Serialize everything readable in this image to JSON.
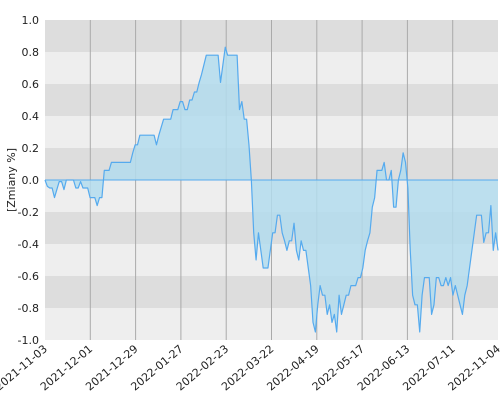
{
  "chart_data": {
    "type": "area",
    "title": "",
    "xlabel": "",
    "ylabel": "[Zmiany %]",
    "ylim": [
      -1.0,
      1.0
    ],
    "y_ticks": [
      "1.0",
      "0.8",
      "0.6",
      "0.4",
      "0.2",
      "0.0",
      "-0.2",
      "-0.4",
      "-0.6",
      "-0.8",
      "-1.0"
    ],
    "x_ticks": [
      "2021-11-03",
      "2021-12-01",
      "2021-12-29",
      "2022-01-27",
      "2022-02-23",
      "2022-03-22",
      "2022-04-19",
      "2022-05-17",
      "2022-06-13",
      "2022-07-11",
      "2022-11-04"
    ],
    "grid": true,
    "series": [
      {
        "values": [
          0.0,
          -0.04,
          -0.05,
          -0.05,
          -0.11,
          -0.06,
          -0.01,
          -0.01,
          -0.06,
          0.0,
          0.0,
          0.0,
          0.0,
          -0.05,
          -0.05,
          -0.01,
          -0.05,
          -0.05,
          -0.05,
          -0.11,
          -0.11,
          -0.11,
          -0.16,
          -0.11,
          -0.11,
          0.06,
          0.06,
          0.06,
          0.11,
          0.11,
          0.11,
          0.11,
          0.11,
          0.11,
          0.11,
          0.11,
          0.11,
          0.17,
          0.22,
          0.22,
          0.28,
          0.28,
          0.28,
          0.28,
          0.28,
          0.28,
          0.28,
          0.22,
          0.28,
          0.33,
          0.38,
          0.38,
          0.38,
          0.38,
          0.44,
          0.44,
          0.44,
          0.49,
          0.49,
          0.44,
          0.44,
          0.5,
          0.5,
          0.55,
          0.55,
          0.61,
          0.66,
          0.72,
          0.78,
          0.78,
          0.78,
          0.78,
          0.78,
          0.78,
          0.61,
          0.72,
          0.83,
          0.78,
          0.78,
          0.78,
          0.78,
          0.78,
          0.44,
          0.49,
          0.38,
          0.38,
          0.22,
          0.0,
          -0.33,
          -0.5,
          -0.33,
          -0.44,
          -0.55,
          -0.55,
          -0.55,
          -0.44,
          -0.33,
          -0.33,
          -0.22,
          -0.22,
          -0.33,
          -0.38,
          -0.44,
          -0.38,
          -0.38,
          -0.27,
          -0.44,
          -0.5,
          -0.38,
          -0.44,
          -0.44,
          -0.55,
          -0.66,
          -0.89,
          -0.95,
          -0.78,
          -0.66,
          -0.72,
          -0.72,
          -0.84,
          -0.78,
          -0.89,
          -0.84,
          -0.95,
          -0.72,
          -0.84,
          -0.78,
          -0.72,
          -0.72,
          -0.66,
          -0.66,
          -0.66,
          -0.61,
          -0.61,
          -0.55,
          -0.44,
          -0.38,
          -0.33,
          -0.17,
          -0.11,
          0.06,
          0.06,
          0.06,
          0.11,
          0.0,
          0.0,
          0.06,
          -0.17,
          -0.17,
          0.0,
          0.06,
          0.17,
          0.11,
          -0.05,
          -0.44,
          -0.72,
          -0.78,
          -0.78,
          -0.95,
          -0.72,
          -0.61,
          -0.61,
          -0.61,
          -0.84,
          -0.78,
          -0.61,
          -0.61,
          -0.66,
          -0.66,
          -0.61,
          -0.66,
          -0.61,
          -0.72,
          -0.66,
          -0.72,
          -0.78,
          -0.84,
          -0.72,
          -0.66,
          -0.55,
          -0.44,
          -0.33,
          -0.22,
          -0.22,
          -0.22,
          -0.39,
          -0.33,
          -0.33,
          -0.16,
          -0.44,
          -0.33,
          -0.44
        ]
      }
    ],
    "colors": {
      "line": "#55aaee",
      "fill": "#b3dced",
      "band_dark": "#dddddd",
      "band_light": "#eeeeee",
      "vgrid": "#aaaaaa",
      "zero_line": "#55aaee"
    }
  }
}
